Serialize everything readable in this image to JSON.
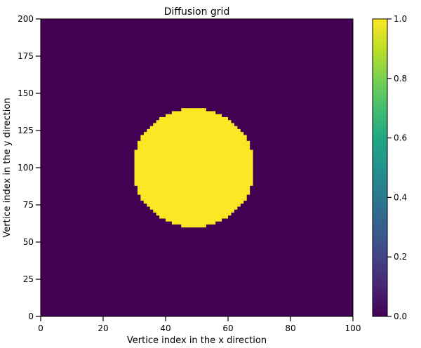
{
  "chart_data": {
    "type": "heatmap",
    "title": "Diffusion grid",
    "xlabel": "Vertice index in the x direction",
    "ylabel": "Vertice index in the y direction",
    "xlim": [
      0,
      100
    ],
    "ylim": [
      0,
      200
    ],
    "x_ticks": [
      0,
      20,
      40,
      60,
      80,
      100
    ],
    "y_ticks": [
      0,
      25,
      50,
      75,
      100,
      125,
      150,
      175,
      200
    ],
    "colormap": "viridis",
    "colorbar_range": [
      0.0,
      1.0
    ],
    "colorbar_ticks": [
      "0.0",
      "0.2",
      "0.4",
      "0.6",
      "0.8",
      "1.0"
    ],
    "background_value": 0.0,
    "region_value": 1.0,
    "region": {
      "shape": "circle",
      "center": [
        49,
        100
      ],
      "radius_x_units": 19.5,
      "radius_y_units": 40
    },
    "grid": false
  }
}
